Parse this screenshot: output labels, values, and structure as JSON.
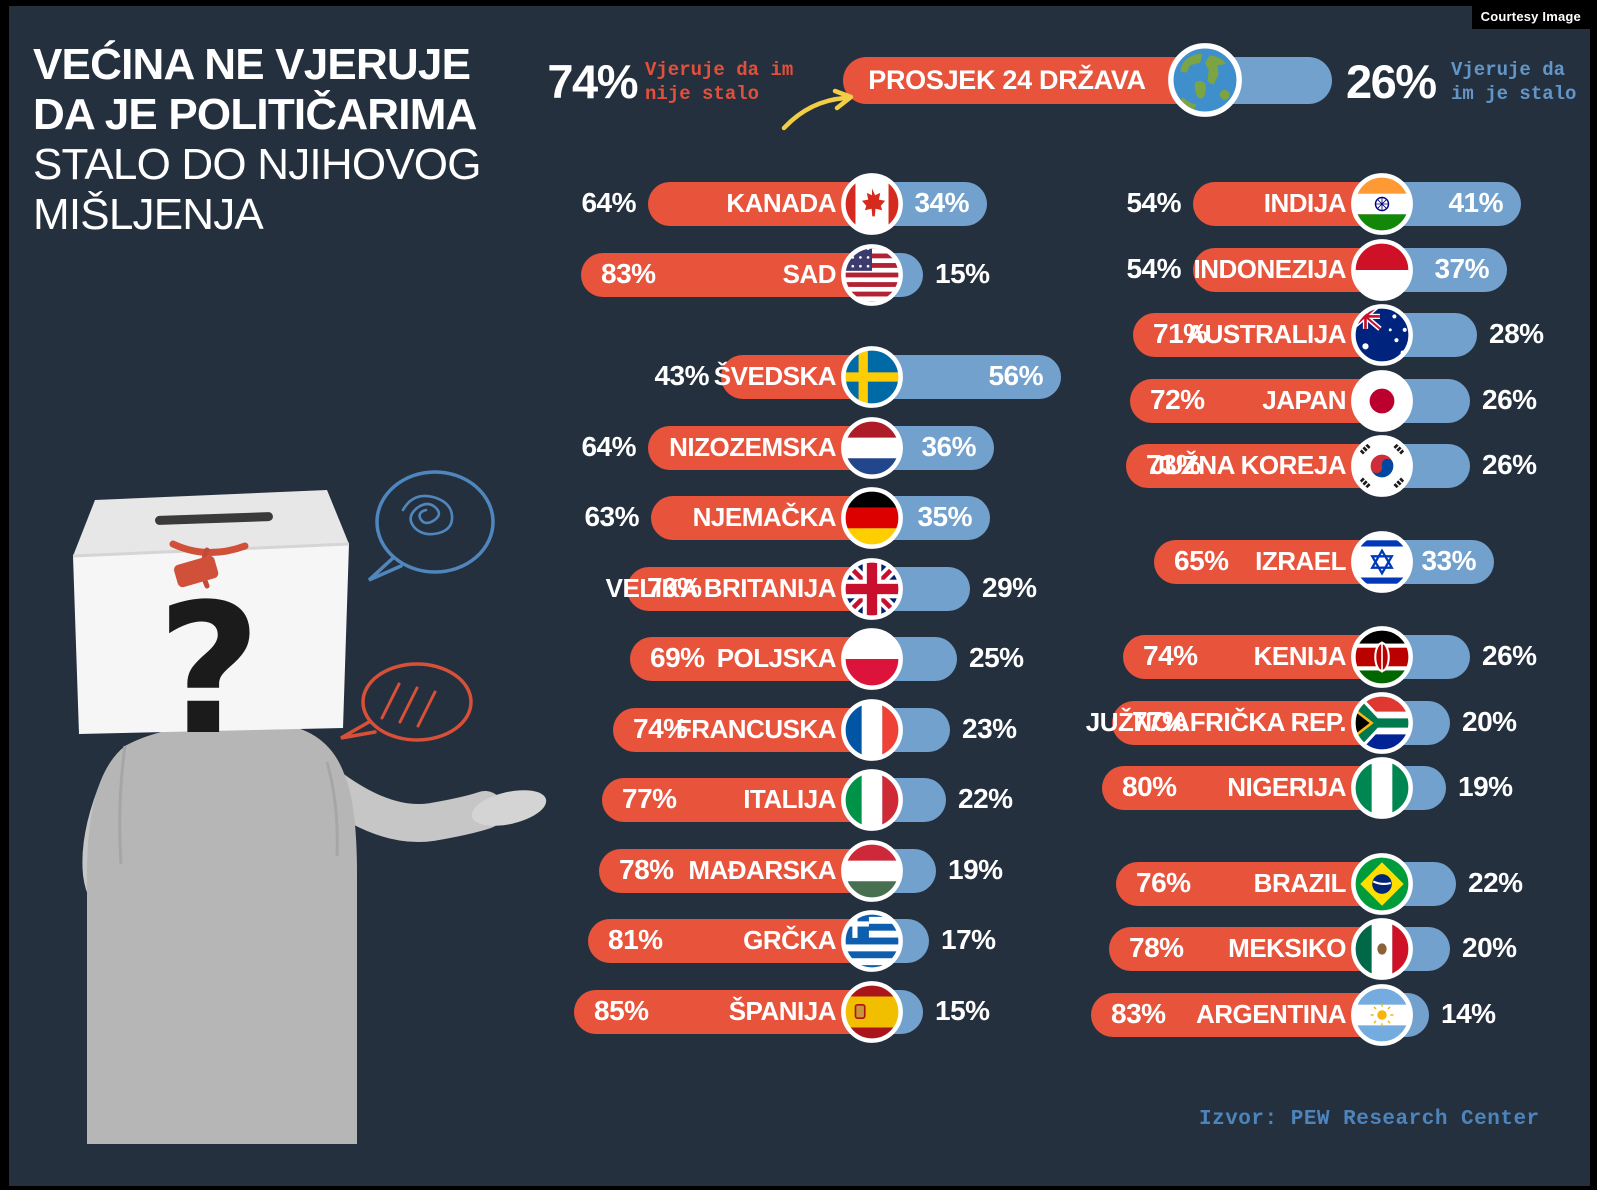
{
  "badge": "Courtesy Image",
  "title": {
    "line1": "VEĆINA NE VJERUJE",
    "line2": "DA JE POLITIČARIMA",
    "line3": "STALO DO NJIHOVOG",
    "line4": "MIŠLJENJA"
  },
  "legend": {
    "left_pct": "74%",
    "left_label_1": "Vjeruje da im",
    "left_label_2": "nije stalo",
    "bar_label": "PROSJEK 24 DRŽAVA",
    "right_pct": "26%",
    "right_label_1": "Vjeruje da",
    "right_label_2": "im je stalo",
    "globe_icon": "globe-icon",
    "arrow_icon": "curved-arrow-icon"
  },
  "source": "Izvor: PEW Research Center",
  "colors": {
    "background": "#25303E",
    "bar_nije_stalo": "#E8533C",
    "bar_je_stalo": "#73A1CE",
    "annotation_nije": "#E2503B",
    "annotation_je": "#6296C8",
    "source_text": "#4D84BB",
    "arrow": "#F2CE46",
    "title_text": "#FFFFFF"
  },
  "chart_data": {
    "type": "bar",
    "title": "VEĆINA NE VJERUJE DA JE POLITIČARIMA STALO DO NJIHOVOG MIŠLJENJA",
    "units": "%",
    "series_labels": {
      "nije_stalo": "Vjeruje da im nije stalo",
      "je_stalo": "Vjeruje da im je stalo"
    },
    "average": {
      "label": "PROSJEK 24 DRŽAVA",
      "nije_stalo": 74,
      "je_stalo": 26
    },
    "countries": [
      {
        "name": "KANADA",
        "flag": "canada",
        "column": "left",
        "group": "sjeverna-amerika",
        "nije_stalo": 64,
        "je_stalo": 34
      },
      {
        "name": "SAD",
        "flag": "usa",
        "column": "left",
        "group": "sjeverna-amerika",
        "nije_stalo": 83,
        "je_stalo": 15
      },
      {
        "name": "ŠVEDSKA",
        "flag": "sweden",
        "column": "left",
        "group": "europa",
        "nije_stalo": 43,
        "je_stalo": 56
      },
      {
        "name": "NIZOZEMSKA",
        "flag": "netherlands",
        "column": "left",
        "group": "europa",
        "nije_stalo": 64,
        "je_stalo": 36
      },
      {
        "name": "NJEMAČKA",
        "flag": "germany",
        "column": "left",
        "group": "europa",
        "nije_stalo": 63,
        "je_stalo": 35
      },
      {
        "name": "VELIKA BRITANIJA",
        "flag": "uk",
        "column": "left",
        "group": "europa",
        "nije_stalo": 70,
        "je_stalo": 29
      },
      {
        "name": "POLJSKA",
        "flag": "poland",
        "column": "left",
        "group": "europa",
        "nije_stalo": 69,
        "je_stalo": 25
      },
      {
        "name": "FRANCUSKA",
        "flag": "france",
        "column": "left",
        "group": "europa",
        "nije_stalo": 74,
        "je_stalo": 23
      },
      {
        "name": "ITALIJA",
        "flag": "italy",
        "column": "left",
        "group": "europa",
        "nije_stalo": 77,
        "je_stalo": 22
      },
      {
        "name": "MAĐARSKA",
        "flag": "hungary",
        "column": "left",
        "group": "europa",
        "nije_stalo": 78,
        "je_stalo": 19
      },
      {
        "name": "GRČKA",
        "flag": "greece",
        "column": "left",
        "group": "europa",
        "nije_stalo": 81,
        "je_stalo": 17
      },
      {
        "name": "ŠPANIJA",
        "flag": "spain",
        "column": "left",
        "group": "europa",
        "nije_stalo": 85,
        "je_stalo": 15
      },
      {
        "name": "INDIJA",
        "flag": "india",
        "column": "right",
        "group": "azija-pacifik",
        "nije_stalo": 54,
        "je_stalo": 41
      },
      {
        "name": "INDONEZIJA",
        "flag": "indonesia",
        "column": "right",
        "group": "azija-pacifik",
        "nije_stalo": 54,
        "je_stalo": 37
      },
      {
        "name": "AUSTRALIJA",
        "flag": "australia",
        "column": "right",
        "group": "azija-pacifik",
        "nije_stalo": 71,
        "je_stalo": 28
      },
      {
        "name": "JAPAN",
        "flag": "japan",
        "column": "right",
        "group": "azija-pacifik",
        "nije_stalo": 72,
        "je_stalo": 26
      },
      {
        "name": "JUŽNA KOREJA",
        "flag": "south-korea",
        "column": "right",
        "group": "azija-pacifik",
        "nije_stalo": 73,
        "je_stalo": 26
      },
      {
        "name": "IZRAEL",
        "flag": "israel",
        "column": "right",
        "group": "bliski-istok",
        "nije_stalo": 65,
        "je_stalo": 33
      },
      {
        "name": "KENIJA",
        "flag": "kenya",
        "column": "right",
        "group": "afrika",
        "nije_stalo": 74,
        "je_stalo": 26
      },
      {
        "name": "JUŽNOAFRIČKA REP.",
        "flag": "south-africa",
        "column": "right",
        "group": "afrika",
        "nije_stalo": 77,
        "je_stalo": 20
      },
      {
        "name": "NIGERIJA",
        "flag": "nigeria",
        "column": "right",
        "group": "afrika",
        "nije_stalo": 80,
        "je_stalo": 19
      },
      {
        "name": "BRAZIL",
        "flag": "brazil",
        "column": "right",
        "group": "latinska-amerika",
        "nije_stalo": 76,
        "je_stalo": 22
      },
      {
        "name": "MEKSIKO",
        "flag": "mexico",
        "column": "right",
        "group": "latinska-amerika",
        "nije_stalo": 78,
        "je_stalo": 20
      },
      {
        "name": "ARGENTINA",
        "flag": "argentina",
        "column": "right",
        "group": "latinska-amerika",
        "nije_stalo": 83,
        "je_stalo": 14
      }
    ],
    "source": "Izvor: PEW Research Center",
    "legend_position": "top"
  }
}
